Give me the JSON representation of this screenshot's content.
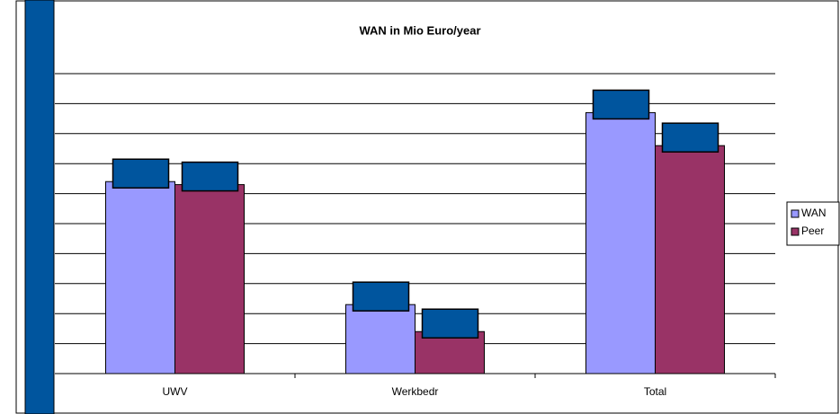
{
  "chart_data": {
    "type": "bar",
    "title": "WAN in Mio Euro/year",
    "categories": [
      "UWV",
      "Werkbedr",
      "Total"
    ],
    "series": [
      {
        "name": "WAN",
        "color": "#9999ff",
        "values": [
          6.4,
          2.3,
          8.7
        ]
      },
      {
        "name": "Peer",
        "color": "#993366",
        "values": [
          6.3,
          1.4,
          7.6
        ]
      }
    ],
    "ylim": [
      0,
      11
    ],
    "yticks": [
      0,
      1,
      2,
      3,
      4,
      5,
      6,
      7,
      8,
      9,
      10
    ],
    "grid": true,
    "legend": "right"
  }
}
